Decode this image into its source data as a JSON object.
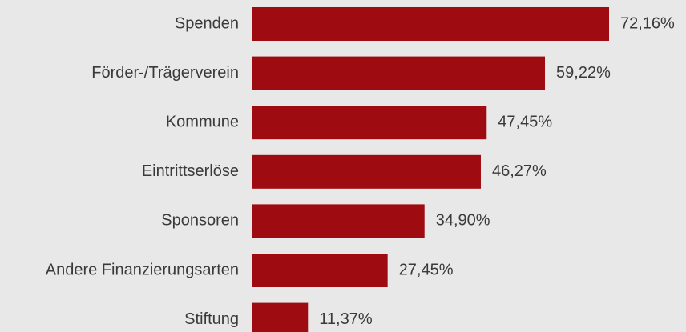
{
  "chart_data": {
    "type": "bar",
    "orientation": "horizontal",
    "categories": [
      "Spenden",
      "Förder-/Trägerverein",
      "Kommune",
      "Eintrittserlöse",
      "Sponsoren",
      "Andere Finanzierungsarten",
      "Stiftung"
    ],
    "values": [
      72.16,
      59.22,
      47.45,
      46.27,
      34.9,
      27.45,
      11.37
    ],
    "value_labels": [
      "72,16%",
      "59,22%",
      "47,45%",
      "46,27%",
      "34,90%",
      "27,45%",
      "11,37%"
    ],
    "color": "#9e0b10"
  }
}
